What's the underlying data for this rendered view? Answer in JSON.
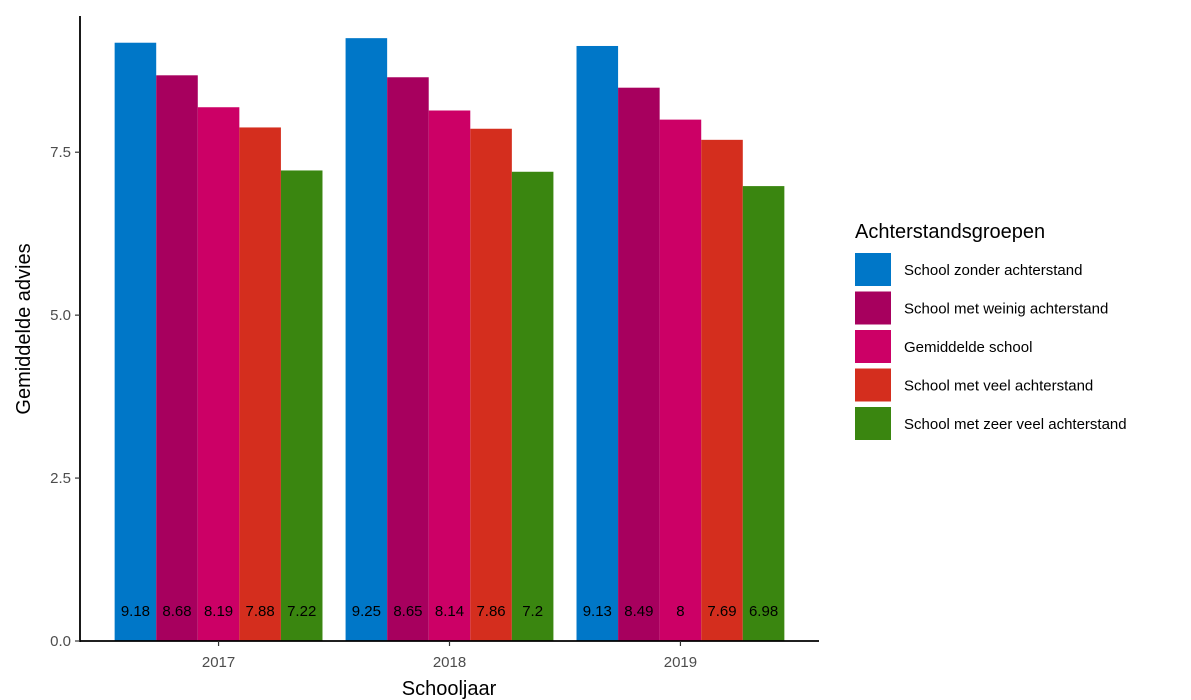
{
  "chart_data": {
    "type": "bar",
    "categories": [
      "2017",
      "2018",
      "2019"
    ],
    "series": [
      {
        "name": "School zonder achterstand",
        "color": "#0077C8",
        "values": [
          9.18,
          9.25,
          9.13
        ],
        "labels": [
          "9.18",
          "9.25",
          "9.13"
        ]
      },
      {
        "name": "School met weinig achterstand",
        "color": "#A7005E",
        "values": [
          8.68,
          8.65,
          8.49
        ],
        "labels": [
          "8.68",
          "8.65",
          "8.49"
        ]
      },
      {
        "name": "Gemiddelde school",
        "color": "#CC0066",
        "values": [
          8.19,
          8.14,
          8.0
        ],
        "labels": [
          "8.19",
          "8.14",
          "8"
        ]
      },
      {
        "name": "School met veel achterstand",
        "color": "#D42E1E",
        "values": [
          7.88,
          7.86,
          7.69
        ],
        "labels": [
          "7.88",
          "7.86",
          "7.69"
        ]
      },
      {
        "name": "School met zeer veel achterstand",
        "color": "#3A8610",
        "values": [
          7.22,
          7.2,
          6.98
        ],
        "labels": [
          "7.22",
          "7.2",
          "6.98"
        ]
      }
    ],
    "xlabel": "Schooljaar",
    "ylabel": "Gemiddelde advies",
    "ylim": [
      0,
      9.59
    ],
    "yticks": [
      0.0,
      2.5,
      5.0,
      7.5
    ],
    "ytick_labels": [
      "0.0",
      "2.5",
      "5.0",
      "7.5"
    ],
    "legend_title": "Achterstandsgroepen",
    "legend_position": "right",
    "grid": false
  }
}
